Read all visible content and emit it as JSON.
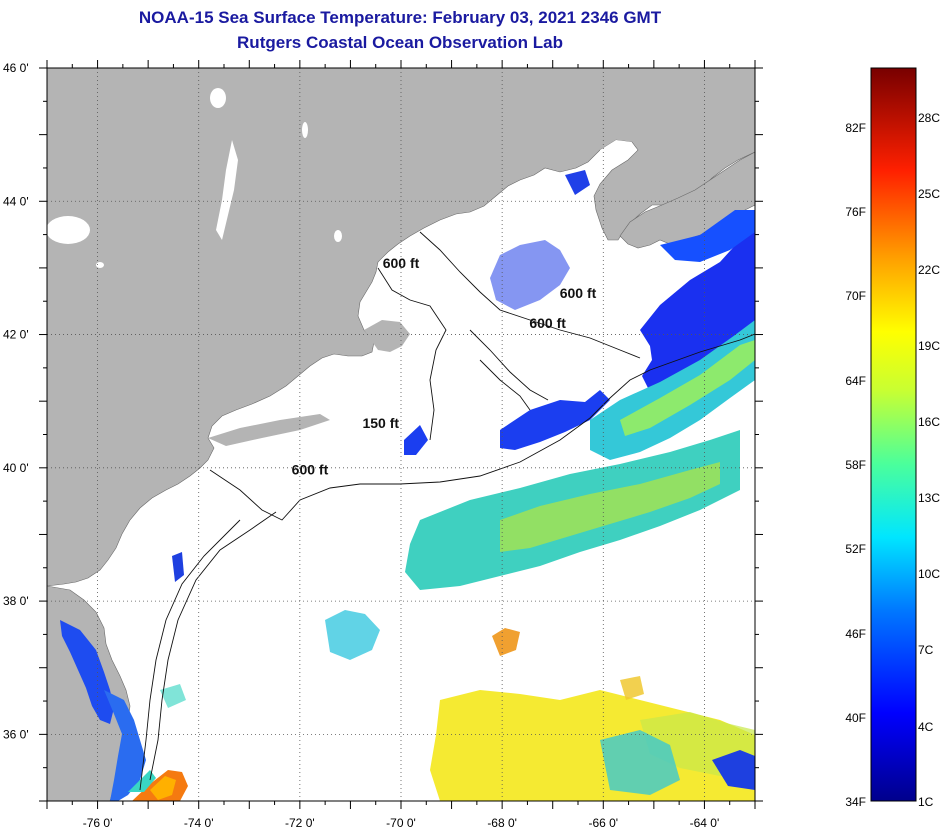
{
  "title": {
    "line1": "NOAA-15 Sea Surface Temperature:  February 03, 2021 2346 GMT",
    "line2": "Rutgers Coastal Ocean Observation Lab"
  },
  "map": {
    "lon_range": [
      -77,
      -63
    ],
    "lat_range": [
      35,
      46
    ],
    "lon_ticks": [
      {
        "value": -76,
        "label": "-76 0'"
      },
      {
        "value": -74,
        "label": "-74 0'"
      },
      {
        "value": -72,
        "label": "-72 0'"
      },
      {
        "value": -70,
        "label": "-70 0'"
      },
      {
        "value": -68,
        "label": "-68 0'"
      },
      {
        "value": -66,
        "label": "-66 0'"
      },
      {
        "value": -64,
        "label": "-64 0'"
      }
    ],
    "lat_ticks": [
      {
        "value": 46,
        "label": "46 0'"
      },
      {
        "value": 44,
        "label": "44 0'"
      },
      {
        "value": 42,
        "label": "42 0'"
      },
      {
        "value": 40,
        "label": "40 0'"
      },
      {
        "value": 38,
        "label": "38 0'"
      },
      {
        "value": 36,
        "label": "36 0'"
      }
    ],
    "contour_labels": [
      {
        "text": "600 ft",
        "lon": -70.0,
        "lat": 43.0
      },
      {
        "text": "600 ft",
        "lon": -66.5,
        "lat": 42.55
      },
      {
        "text": "600 ft",
        "lon": -67.1,
        "lat": 42.1
      },
      {
        "text": "150 ft",
        "lon": -70.4,
        "lat": 40.6
      },
      {
        "text": "600 ft",
        "lon": -71.8,
        "lat": 39.9
      }
    ],
    "land_color": "#b4b4b4",
    "ocean_color": "#ffffff"
  },
  "colorbar": {
    "fahrenheit": [
      "82F",
      "76F",
      "70F",
      "64F",
      "58F",
      "52F",
      "46F",
      "40F",
      "34F"
    ],
    "celsius": [
      "28C",
      "25C",
      "22C",
      "19C",
      "16C",
      "13C",
      "10C",
      "7C",
      "4C",
      "1C"
    ]
  }
}
